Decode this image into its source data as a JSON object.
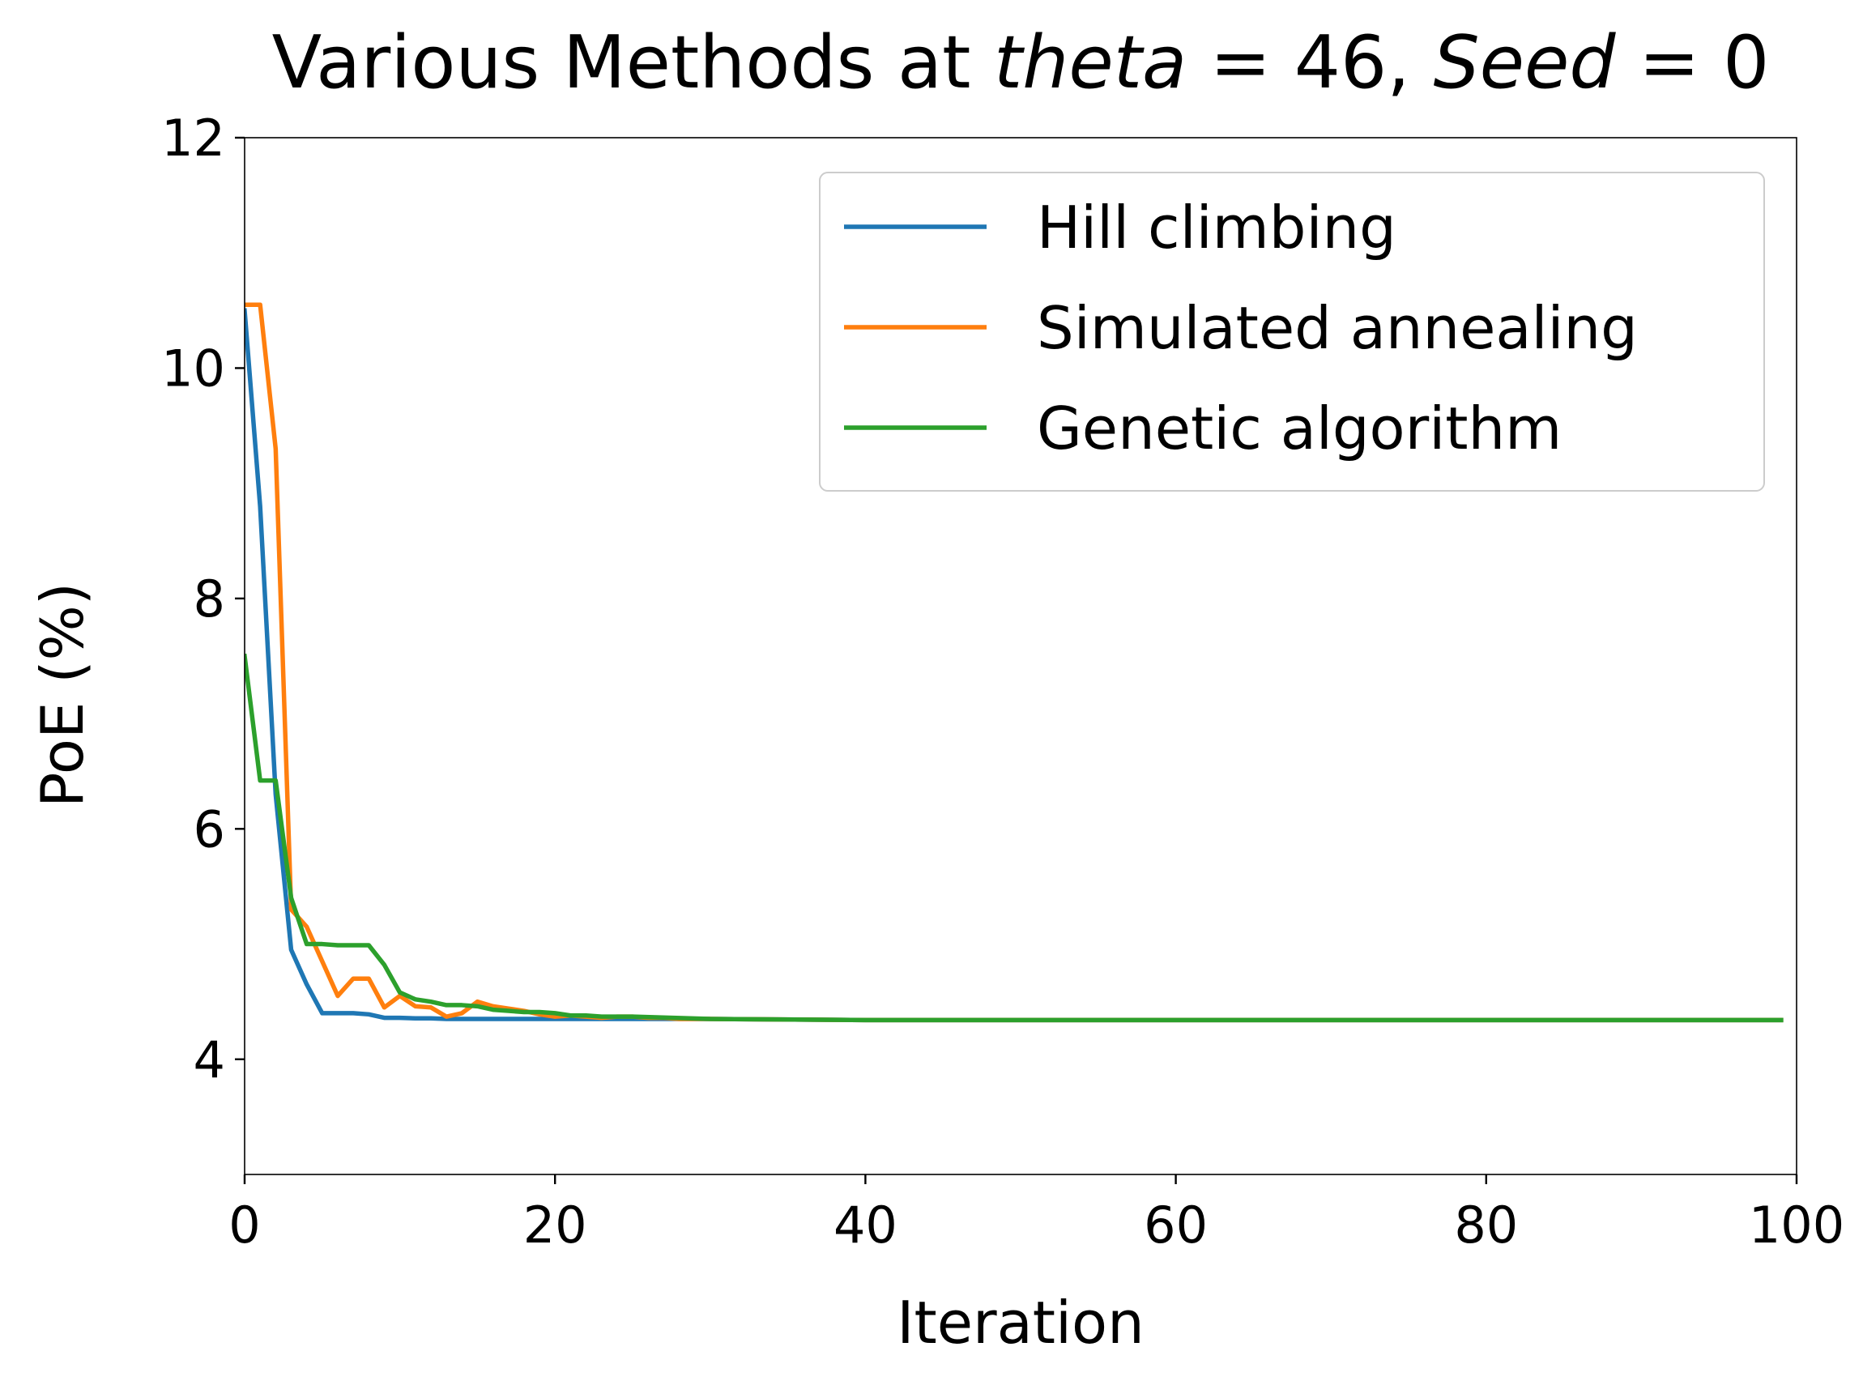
{
  "chart_data": {
    "type": "line",
    "title_parts": [
      {
        "text": "Various Methods at ",
        "style": "normal"
      },
      {
        "text": "theta",
        "style": "italic"
      },
      {
        "text": " = 46, ",
        "style": "normal"
      },
      {
        "text": "Seed",
        "style": "italic"
      },
      {
        "text": " = 0",
        "style": "normal"
      }
    ],
    "xlabel": "Iteration",
    "ylabel": "PoE (%)",
    "xlim": [
      0,
      100
    ],
    "ylim": [
      3,
      12
    ],
    "xticks": [
      0,
      20,
      40,
      60,
      80,
      100
    ],
    "yticks": [
      4,
      6,
      8,
      10,
      12
    ],
    "xtick_labels": [
      "0",
      "20",
      "40",
      "60",
      "80",
      "100"
    ],
    "ytick_labels": [
      "4",
      "6",
      "8",
      "10",
      "12"
    ],
    "grid": false,
    "legend_position": "top-right",
    "series": [
      {
        "name": "Hill climbing",
        "color": "#1f77b4",
        "x": [
          0,
          1,
          2,
          3,
          4,
          5,
          6,
          7,
          8,
          9,
          10,
          11,
          12,
          13,
          14,
          15,
          16,
          17,
          18,
          19,
          20,
          25,
          30,
          40,
          50,
          60,
          70,
          80,
          90,
          99
        ],
        "y": [
          10.5,
          8.8,
          6.3,
          4.95,
          4.65,
          4.4,
          4.4,
          4.4,
          4.39,
          4.36,
          4.36,
          4.355,
          4.355,
          4.35,
          4.35,
          4.35,
          4.35,
          4.35,
          4.35,
          4.35,
          4.35,
          4.35,
          4.35,
          4.34,
          4.34,
          4.34,
          4.34,
          4.34,
          4.34,
          4.34
        ]
      },
      {
        "name": "Simulated annealing",
        "color": "#ff7f0e",
        "x": [
          0,
          1,
          2,
          3,
          4,
          5,
          6,
          7,
          8,
          9,
          10,
          11,
          12,
          13,
          14,
          15,
          16,
          17,
          18,
          19,
          20,
          21,
          22,
          23,
          24,
          25,
          26,
          27,
          28,
          30,
          40,
          50,
          60,
          70,
          80,
          90,
          99
        ],
        "y": [
          10.55,
          10.55,
          9.3,
          5.3,
          5.15,
          4.85,
          4.55,
          4.7,
          4.7,
          4.45,
          4.55,
          4.46,
          4.45,
          4.37,
          4.4,
          4.5,
          4.46,
          4.44,
          4.42,
          4.39,
          4.37,
          4.38,
          4.37,
          4.36,
          4.37,
          4.37,
          4.36,
          4.36,
          4.35,
          4.35,
          4.34,
          4.34,
          4.34,
          4.34,
          4.34,
          4.34,
          4.34
        ]
      },
      {
        "name": "Genetic algorithm",
        "color": "#2ca02c",
        "x": [
          0,
          1,
          2,
          3,
          4,
          5,
          6,
          7,
          8,
          9,
          10,
          11,
          12,
          13,
          14,
          15,
          16,
          17,
          18,
          19,
          20,
          21,
          22,
          23,
          25,
          30,
          40,
          50,
          60,
          70,
          80,
          90,
          99
        ],
        "y": [
          7.5,
          6.42,
          6.42,
          5.4,
          5.0,
          5.0,
          4.99,
          4.99,
          4.99,
          4.82,
          4.58,
          4.52,
          4.5,
          4.47,
          4.47,
          4.46,
          4.43,
          4.42,
          4.41,
          4.41,
          4.4,
          4.38,
          4.38,
          4.37,
          4.37,
          4.35,
          4.34,
          4.34,
          4.34,
          4.34,
          4.34,
          4.34,
          4.34
        ]
      }
    ]
  }
}
